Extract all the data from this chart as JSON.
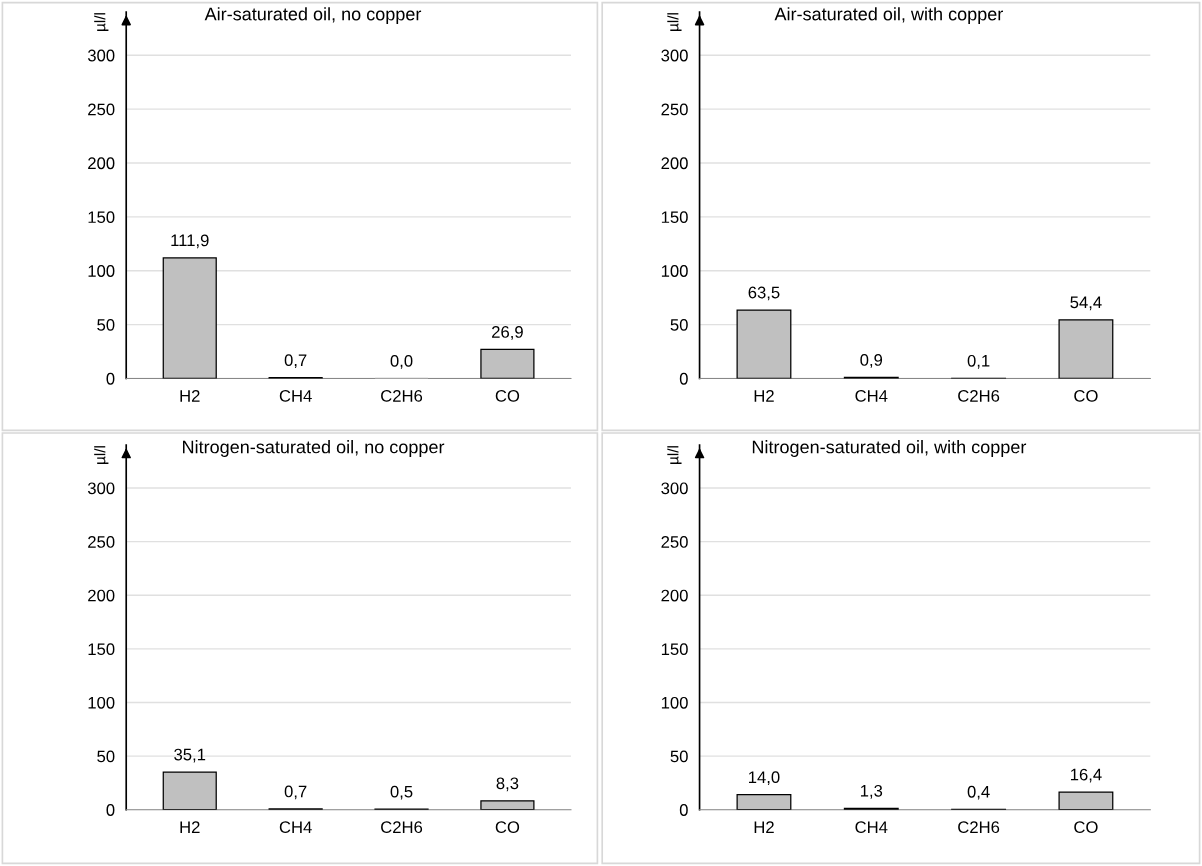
{
  "chart_data": [
    {
      "type": "bar",
      "title": "Air-saturated oil, no copper",
      "ylabel": "µl/l",
      "categories": [
        "H2",
        "CH4",
        "C2H6",
        "CO"
      ],
      "values": [
        111.9,
        0.7,
        0.0,
        26.9
      ],
      "value_labels": [
        "111,9",
        "0,7",
        "0,0",
        "26,9"
      ],
      "color": "#c0c0c0",
      "ylim": [
        0,
        340
      ],
      "yticks": [
        0,
        50,
        100,
        150,
        200,
        250,
        300
      ],
      "grid": "y"
    },
    {
      "type": "bar",
      "title": "Air-saturated oil, with copper",
      "ylabel": "µl/l",
      "categories": [
        "H2",
        "CH4",
        "C2H6",
        "CO"
      ],
      "values": [
        63.5,
        0.9,
        0.1,
        54.4
      ],
      "value_labels": [
        "63,5",
        "0,9",
        "0,1",
        "54,4"
      ],
      "color": "#c0c0c0",
      "ylim": [
        0,
        340
      ],
      "yticks": [
        0,
        50,
        100,
        150,
        200,
        250,
        300
      ],
      "grid": "y"
    },
    {
      "type": "bar",
      "title": "Nitrogen-saturated oil, no copper",
      "ylabel": "µl/l",
      "categories": [
        "H2",
        "CH4",
        "C2H6",
        "CO"
      ],
      "values": [
        35.1,
        0.7,
        0.5,
        8.3
      ],
      "value_labels": [
        "35,1",
        "0,7",
        "0,5",
        "8,3"
      ],
      "color": "#c0c0c0",
      "ylim": [
        0,
        340
      ],
      "yticks": [
        0,
        50,
        100,
        150,
        200,
        250,
        300
      ],
      "grid": "y"
    },
    {
      "type": "bar",
      "title": "Nitrogen-saturated oil, with copper",
      "ylabel": "µl/l",
      "categories": [
        "H2",
        "CH4",
        "C2H6",
        "CO"
      ],
      "values": [
        14.0,
        1.3,
        0.4,
        16.4
      ],
      "value_labels": [
        "14,0",
        "1,3",
        "0,4",
        "16,4"
      ],
      "color": "#c0c0c0",
      "ylim": [
        0,
        340
      ],
      "yticks": [
        0,
        50,
        100,
        150,
        200,
        250,
        300
      ],
      "grid": "y"
    }
  ]
}
